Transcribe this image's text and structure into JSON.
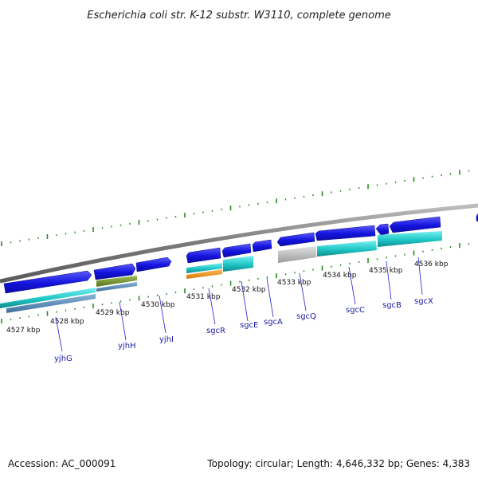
{
  "title": "Escherichia coli str. K-12 substr. W3110, complete genome",
  "footer": {
    "accession": "Accession: AC_000091",
    "summary": "Topology: circular; Length: 4,646,332 bp; Genes: 4,383"
  },
  "scale_labels": [
    "4527 kbp",
    "4528 kbp",
    "4529 kbp",
    "4530 kbp",
    "4531 kbp",
    "4532 kbp",
    "4533 kbp",
    "4534 kbp",
    "4535 kbp",
    "4536 kbp"
  ],
  "gene_labels": [
    "yjhG",
    "yjhH",
    "yjhI",
    "sgcR",
    "sgcE",
    "sgcA",
    "sgcQ",
    "sgcC",
    "sgcB",
    "sgcX"
  ],
  "colors": {
    "backbone": "#8c8c8c",
    "gene": "#1414e0",
    "cds_teal": "#1fc6c6",
    "cds_green": "#6b8f2a",
    "cds_steel": "#4d84b5",
    "cds_orange": "#f08c10",
    "cds_gray": "#b9b9b9",
    "tick": "#2a8a1f",
    "label_line": "#2020d0"
  }
}
